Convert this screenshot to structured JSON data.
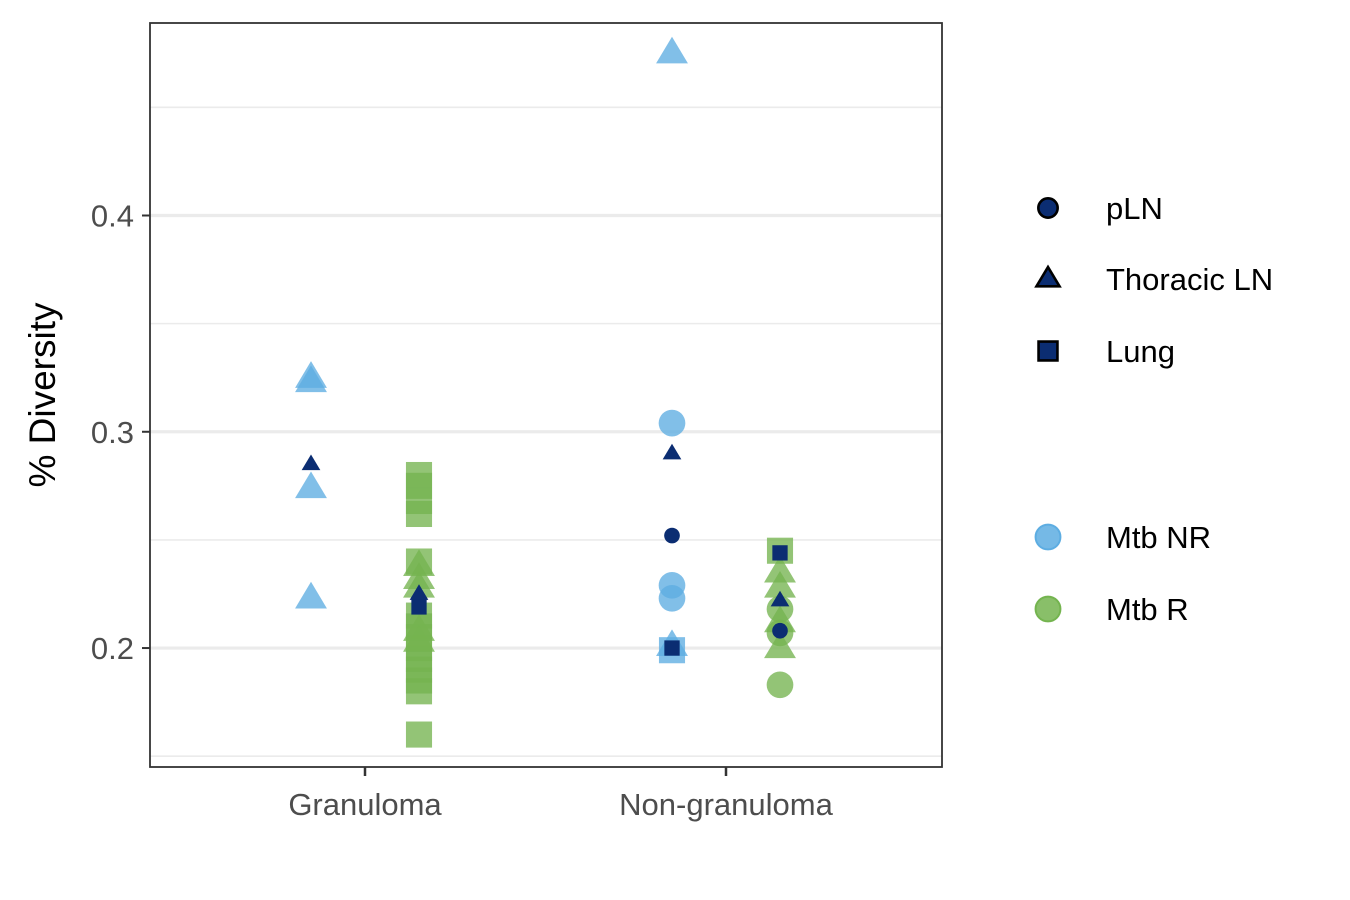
{
  "chart_data": {
    "type": "scatter",
    "title": "",
    "xlabel": "",
    "ylabel": "% Diversity",
    "categories": [
      "Granuloma",
      "Non-granuloma"
    ],
    "ylim": [
      0.145,
      0.489
    ],
    "yticks": [
      0.2,
      0.3,
      0.4
    ],
    "ytick_labels": [
      "0.2",
      "0.3",
      "0.4"
    ],
    "grid": true,
    "legend_position": "right",
    "groups": [
      "Mtb NR",
      "Mtb R"
    ],
    "shapes": [
      "pLN",
      "Thoracic LN",
      "Lung"
    ],
    "legend": {
      "shape_entries": [
        {
          "label": "pLN",
          "shape": "circle"
        },
        {
          "label": "Thoracic LN",
          "shape": "triangle"
        },
        {
          "label": "Lung",
          "shape": "square"
        }
      ],
      "color_entries": [
        {
          "label": "Mtb NR",
          "color": "#5dade2"
        },
        {
          "label": "Mtb R",
          "color": "#74b44f"
        }
      ]
    },
    "colors": {
      "Mtb NR": "#5dade2",
      "Mtb R": "#74b44f",
      "highlight": "#0b2d72"
    },
    "points": [
      {
        "category": "Granuloma",
        "group": "Mtb NR",
        "tissue": "Thoracic LN",
        "y": 0.325
      },
      {
        "category": "Granuloma",
        "group": "Mtb NR",
        "tissue": "Thoracic LN",
        "y": 0.323
      },
      {
        "category": "Granuloma",
        "group": "Mtb NR",
        "tissue": "Thoracic LN",
        "y": 0.274
      },
      {
        "category": "Granuloma",
        "group": "Mtb NR",
        "tissue": "Thoracic LN",
        "y": 0.223
      },
      {
        "category": "Granuloma",
        "group": "Mtb NR",
        "tissue": "Thoracic LN",
        "y": 0.285,
        "highlight": true
      },
      {
        "category": "Granuloma",
        "group": "Mtb R",
        "tissue": "Lung",
        "y": 0.28
      },
      {
        "category": "Granuloma",
        "group": "Mtb R",
        "tissue": "Lung",
        "y": 0.275
      },
      {
        "category": "Granuloma",
        "group": "Mtb R",
        "tissue": "Lung",
        "y": 0.268
      },
      {
        "category": "Granuloma",
        "group": "Mtb R",
        "tissue": "Lung",
        "y": 0.262
      },
      {
        "category": "Granuloma",
        "group": "Mtb R",
        "tissue": "Lung",
        "y": 0.24
      },
      {
        "category": "Granuloma",
        "group": "Mtb R",
        "tissue": "Lung",
        "y": 0.215
      },
      {
        "category": "Granuloma",
        "group": "Mtb R",
        "tissue": "Lung",
        "y": 0.21
      },
      {
        "category": "Granuloma",
        "group": "Mtb R",
        "tissue": "Lung",
        "y": 0.205
      },
      {
        "category": "Granuloma",
        "group": "Mtb R",
        "tissue": "Lung",
        "y": 0.2
      },
      {
        "category": "Granuloma",
        "group": "Mtb R",
        "tissue": "Lung",
        "y": 0.195
      },
      {
        "category": "Granuloma",
        "group": "Mtb R",
        "tissue": "Lung",
        "y": 0.19
      },
      {
        "category": "Granuloma",
        "group": "Mtb R",
        "tissue": "Lung",
        "y": 0.185
      },
      {
        "category": "Granuloma",
        "group": "Mtb R",
        "tissue": "Lung",
        "y": 0.18
      },
      {
        "category": "Granuloma",
        "group": "Mtb R",
        "tissue": "Lung",
        "y": 0.16
      },
      {
        "category": "Granuloma",
        "group": "Mtb R",
        "tissue": "Thoracic LN",
        "y": 0.238
      },
      {
        "category": "Granuloma",
        "group": "Mtb R",
        "tissue": "Thoracic LN",
        "y": 0.232
      },
      {
        "category": "Granuloma",
        "group": "Mtb R",
        "tissue": "Thoracic LN",
        "y": 0.228
      },
      {
        "category": "Granuloma",
        "group": "Mtb R",
        "tissue": "Thoracic LN",
        "y": 0.208
      },
      {
        "category": "Granuloma",
        "group": "Mtb R",
        "tissue": "Thoracic LN",
        "y": 0.203
      },
      {
        "category": "Granuloma",
        "group": "Mtb R",
        "tissue": "Thoracic LN",
        "y": 0.225,
        "highlight": true
      },
      {
        "category": "Granuloma",
        "group": "Mtb R",
        "tissue": "Lung",
        "y": 0.219,
        "highlight": true
      },
      {
        "category": "Non-granuloma",
        "group": "Mtb NR",
        "tissue": "Thoracic LN",
        "y": 0.475
      },
      {
        "category": "Non-granuloma",
        "group": "Mtb NR",
        "tissue": "pLN",
        "y": 0.304
      },
      {
        "category": "Non-granuloma",
        "group": "Mtb NR",
        "tissue": "pLN",
        "y": 0.229
      },
      {
        "category": "Non-granuloma",
        "group": "Mtb NR",
        "tissue": "pLN",
        "y": 0.223
      },
      {
        "category": "Non-granuloma",
        "group": "Mtb NR",
        "tissue": "Thoracic LN",
        "y": 0.201
      },
      {
        "category": "Non-granuloma",
        "group": "Mtb NR",
        "tissue": "Lung",
        "y": 0.199
      },
      {
        "category": "Non-granuloma",
        "group": "Mtb NR",
        "tissue": "Thoracic LN",
        "y": 0.29,
        "highlight": true
      },
      {
        "category": "Non-granuloma",
        "group": "Mtb NR",
        "tissue": "pLN",
        "y": 0.252,
        "highlight": true
      },
      {
        "category": "Non-granuloma",
        "group": "Mtb NR",
        "tissue": "Lung",
        "y": 0.2,
        "highlight": true
      },
      {
        "category": "Non-granuloma",
        "group": "Mtb R",
        "tissue": "Lung",
        "y": 0.245
      },
      {
        "category": "Non-granuloma",
        "group": "Mtb R",
        "tissue": "Thoracic LN",
        "y": 0.235
      },
      {
        "category": "Non-granuloma",
        "group": "Mtb R",
        "tissue": "Thoracic LN",
        "y": 0.228
      },
      {
        "category": "Non-granuloma",
        "group": "Mtb R",
        "tissue": "pLN",
        "y": 0.218
      },
      {
        "category": "Non-granuloma",
        "group": "Mtb R",
        "tissue": "Thoracic LN",
        "y": 0.212
      },
      {
        "category": "Non-granuloma",
        "group": "Mtb R",
        "tissue": "pLN",
        "y": 0.207
      },
      {
        "category": "Non-granuloma",
        "group": "Mtb R",
        "tissue": "Thoracic LN",
        "y": 0.2
      },
      {
        "category": "Non-granuloma",
        "group": "Mtb R",
        "tissue": "pLN",
        "y": 0.183
      },
      {
        "category": "Non-granuloma",
        "group": "Mtb R",
        "tissue": "Lung",
        "y": 0.244,
        "highlight": true
      },
      {
        "category": "Non-granuloma",
        "group": "Mtb R",
        "tissue": "Thoracic LN",
        "y": 0.222,
        "highlight": true
      },
      {
        "category": "Non-granuloma",
        "group": "Mtb R",
        "tissue": "pLN",
        "y": 0.208,
        "highlight": true
      }
    ]
  }
}
